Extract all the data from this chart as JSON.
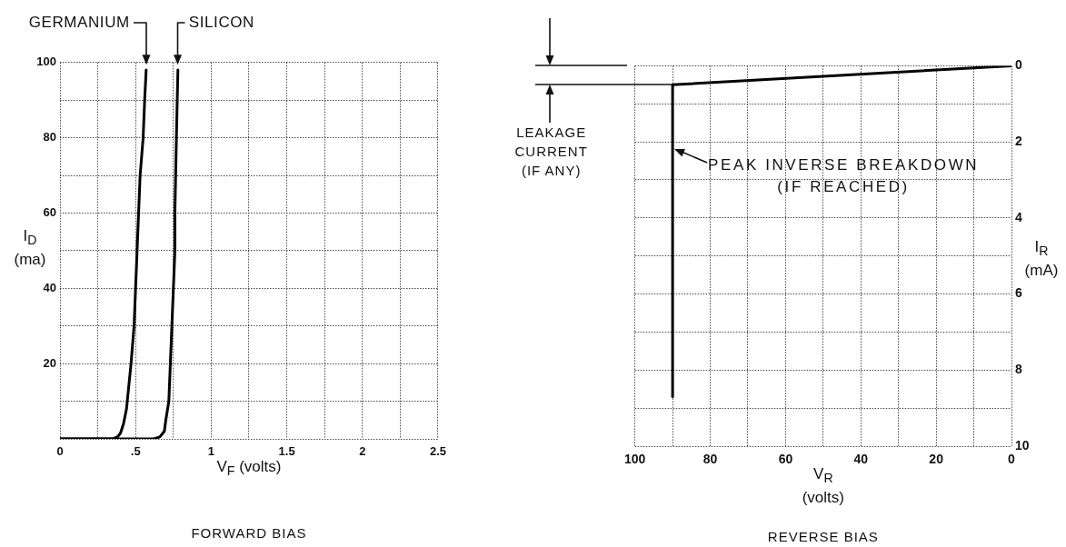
{
  "chart_data": [
    {
      "type": "line",
      "title": "FORWARD BIAS",
      "xlabel": "V$_{F}$ (volts)",
      "ylabel": "I$_{D}$ (ma)",
      "xlim": [
        0,
        2.5
      ],
      "xticks": [
        0,
        {
          "value": 0.25,
          "label": null
        },
        {
          "value": 0.5,
          "label": ".5"
        },
        {
          "value": 0.75,
          "label": null
        },
        1,
        {
          "value": 1.25,
          "label": null
        },
        1.5,
        {
          "value": 1.75,
          "label": null
        },
        2,
        {
          "value": 2.25,
          "label": null
        },
        2.5
      ],
      "ylim": [
        0,
        100
      ],
      "yticks": [
        {
          "value": 0,
          "label": null
        },
        {
          "value": 10,
          "label": null
        },
        20,
        {
          "value": 30,
          "label": null
        },
        40,
        {
          "value": 50,
          "label": null
        },
        60,
        {
          "value": 70,
          "label": null
        },
        80,
        {
          "value": 90,
          "label": null
        },
        100
      ],
      "grid": true,
      "series": [
        {
          "color": "#000000",
          "x": [
            0,
            0.35,
            0.38,
            0.4,
            0.42,
            0.44,
            0.45,
            0.47,
            0.49,
            0.5,
            0.51,
            0.52,
            0.53,
            0.55,
            0.56,
            0.57
          ],
          "values": [
            0,
            0,
            0.5,
            1.5,
            4,
            8,
            12,
            20,
            30,
            40,
            50,
            60,
            70,
            80,
            90,
            98
          ]
        },
        {
          "color": "#000000",
          "x": [
            0,
            0.62,
            0.66,
            0.69,
            0.7,
            0.72,
            0.73,
            0.74,
            0.75,
            0.76,
            0.76,
            0.77,
            0.78
          ],
          "values": [
            0,
            0,
            0.5,
            2,
            5,
            10,
            20,
            30,
            40,
            50,
            60,
            80,
            98
          ]
        }
      ],
      "annotations": [
        {
          "text": "GERMANIUM",
          "x": 0.57,
          "y": 98
        },
        {
          "text": "SILICON",
          "x": 0.78,
          "y": 98
        }
      ]
    },
    {
      "type": "line",
      "title": "REVERSE BIAS",
      "xlabel": "V$_{R}$ (volts)",
      "ylabel": "I$_{R}$ (mA)",
      "xlim": [
        100,
        0
      ],
      "xticks": [
        100,
        {
          "value": 90,
          "label": null
        },
        80,
        {
          "value": 70,
          "label": null
        },
        60,
        {
          "value": 50,
          "label": null
        },
        40,
        {
          "value": 30,
          "label": null
        },
        20,
        {
          "value": 10,
          "label": null
        },
        0
      ],
      "ylim": [
        10,
        0
      ],
      "yticks": [
        0,
        {
          "value": 1,
          "label": null
        },
        2,
        {
          "value": 3,
          "label": null
        },
        4,
        {
          "value": 5,
          "label": null
        },
        6,
        {
          "value": 7,
          "label": null
        },
        8,
        {
          "value": 9,
          "label": null
        },
        10
      ],
      "grid": true,
      "series": [
        {
          "color": "#000000",
          "x": [
            0,
            90,
            90
          ],
          "values": [
            0,
            0.5,
            8.7
          ]
        }
      ],
      "annotations": [
        {
          "text": "PEAK INVERSE BREAKDOWN (IF REACHED)",
          "x": 90,
          "y": 2.2
        },
        "LEAKAGE CURRENT (IF ANY)"
      ]
    }
  ]
}
